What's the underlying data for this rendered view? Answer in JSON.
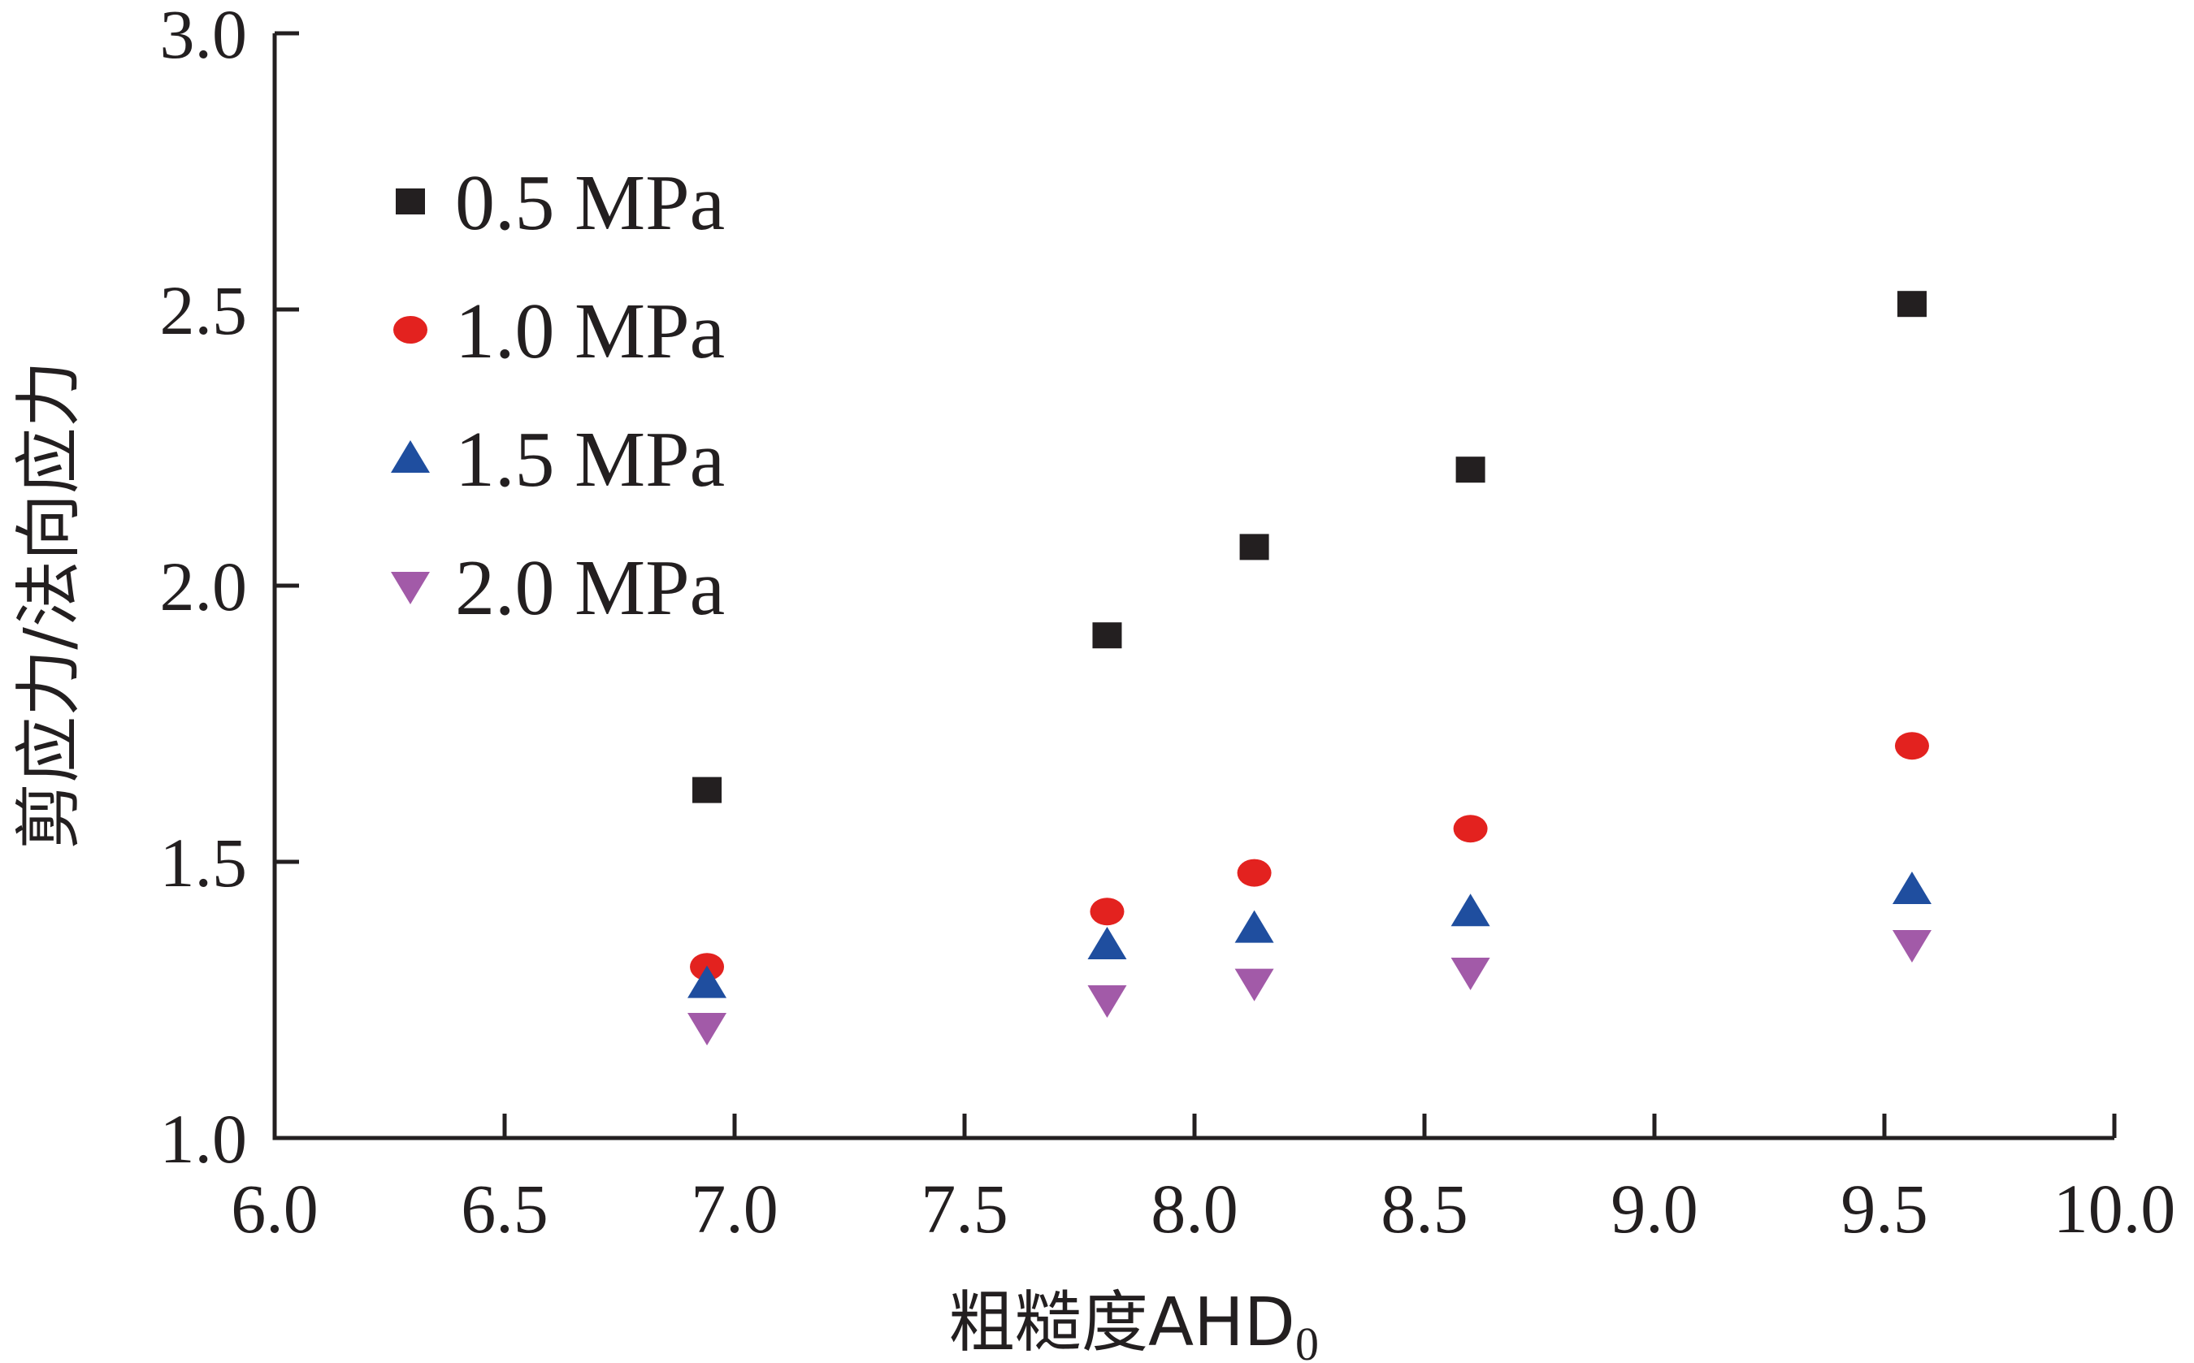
{
  "chart_data": {
    "type": "scatter",
    "title": "",
    "xlabel": "粗糙度AHD",
    "xlabel_subscript": "0",
    "ylabel": "剪应力/法向应力",
    "xlim": [
      6.0,
      10.0
    ],
    "ylim": [
      1.0,
      3.0
    ],
    "x_ticks": [
      "6.0",
      "6.5",
      "7.0",
      "7.5",
      "8.0",
      "8.5",
      "9.0",
      "9.5",
      "10.0"
    ],
    "y_ticks": [
      "1.0",
      "1.5",
      "2.0",
      "2.5",
      "3.0"
    ],
    "grid": false,
    "legend_position": "top-left",
    "series": [
      {
        "name": "0.5 MPa",
        "marker": "square",
        "color": "#231f20",
        "points": [
          [
            6.94,
            1.63
          ],
          [
            7.81,
            1.91
          ],
          [
            8.13,
            2.07
          ],
          [
            8.6,
            2.21
          ],
          [
            9.56,
            2.51
          ]
        ]
      },
      {
        "name": "1.0 MPa",
        "marker": "circle",
        "color": "#e3221f",
        "points": [
          [
            6.94,
            1.31
          ],
          [
            7.81,
            1.41
          ],
          [
            8.13,
            1.48
          ],
          [
            8.6,
            1.56
          ],
          [
            9.56,
            1.71
          ]
        ]
      },
      {
        "name": "1.5 MPa",
        "marker": "triangle-up",
        "color": "#1f4e9f",
        "points": [
          [
            6.94,
            1.28
          ],
          [
            7.81,
            1.35
          ],
          [
            8.13,
            1.38
          ],
          [
            8.6,
            1.41
          ],
          [
            9.56,
            1.45
          ]
        ]
      },
      {
        "name": "2.0 MPa",
        "marker": "triangle-down",
        "color": "#a25aa8",
        "points": [
          [
            6.94,
            1.2
          ],
          [
            7.81,
            1.25
          ],
          [
            8.13,
            1.28
          ],
          [
            8.6,
            1.3
          ],
          [
            9.56,
            1.35
          ]
        ]
      }
    ]
  }
}
